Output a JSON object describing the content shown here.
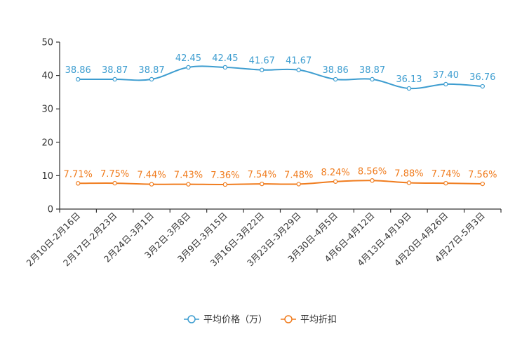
{
  "chart_data": {
    "type": "line",
    "title": "",
    "xlabel": "",
    "ylabel": "",
    "ylim": [
      0,
      50
    ],
    "yticks": [
      0,
      10,
      20,
      30,
      40,
      50
    ],
    "categories": [
      "2月10日-2月16日",
      "2月17日-2月23日",
      "2月24日-3月1日",
      "3月2日-3月8日",
      "3月9日-3月15日",
      "3月16日-3月22日",
      "3月23日-3月29日",
      "3月30日-4月5日",
      "4月6日-4月12日",
      "4月13日-4月19日",
      "4月20日-4月26日",
      "4月27日-5月3日"
    ],
    "series": [
      {
        "name": "平均价格（万）",
        "color": "#3d9dd0",
        "values": [
          38.86,
          38.87,
          38.87,
          42.45,
          42.45,
          41.67,
          41.67,
          38.86,
          38.87,
          36.13,
          37.4,
          36.76
        ],
        "labels": [
          "38.86",
          "38.87",
          "38.87",
          "42.45",
          "42.45",
          "41.67",
          "41.67",
          "38.86",
          "38.87",
          "36.13",
          "37.40",
          "36.76"
        ]
      },
      {
        "name": "平均折扣",
        "color": "#f07c1e",
        "values": [
          7.71,
          7.75,
          7.44,
          7.43,
          7.36,
          7.54,
          7.48,
          8.24,
          8.56,
          7.88,
          7.74,
          7.56
        ],
        "labels": [
          "7.71%",
          "7.75%",
          "7.44%",
          "7.43%",
          "7.36%",
          "7.54%",
          "7.48%",
          "8.24%",
          "8.56%",
          "7.88%",
          "7.74%",
          "7.56%"
        ]
      }
    ],
    "legend_position": "bottom-center",
    "grid": false
  }
}
